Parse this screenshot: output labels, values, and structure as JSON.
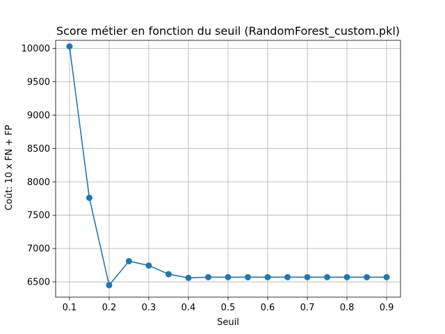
{
  "chart_data": {
    "type": "line",
    "title": "Score métier en fonction du seuil (RandomForest_custom.pkl)",
    "xlabel": "Seuil",
    "ylabel": "Coût: 10 x FN + FP",
    "xlim": [
      0.065,
      0.935
    ],
    "ylim": [
      6271,
      10121
    ],
    "xticks": [
      0.1,
      0.2,
      0.3,
      0.4,
      0.5,
      0.6,
      0.7,
      0.8,
      0.9
    ],
    "xtick_labels": [
      "0.1",
      "0.2",
      "0.3",
      "0.4",
      "0.5",
      "0.6",
      "0.7",
      "0.8",
      "0.9"
    ],
    "yticks": [
      6500,
      7000,
      7500,
      8000,
      8500,
      9000,
      9500,
      10000
    ],
    "ytick_labels": [
      "6500",
      "7000",
      "7500",
      "8000",
      "8500",
      "9000",
      "9500",
      "10000"
    ],
    "grid": true,
    "series": [
      {
        "color": "#1f77b4",
        "marker": "circle",
        "x": [
          0.1,
          0.15,
          0.2,
          0.25,
          0.3,
          0.35,
          0.4,
          0.45,
          0.5,
          0.55,
          0.6,
          0.65,
          0.7,
          0.75,
          0.8,
          0.85,
          0.9
        ],
        "y": [
          10030,
          7760,
          6450,
          6810,
          6745,
          6615,
          6560,
          6570,
          6570,
          6570,
          6570,
          6570,
          6570,
          6570,
          6570,
          6570,
          6570
        ]
      }
    ]
  }
}
